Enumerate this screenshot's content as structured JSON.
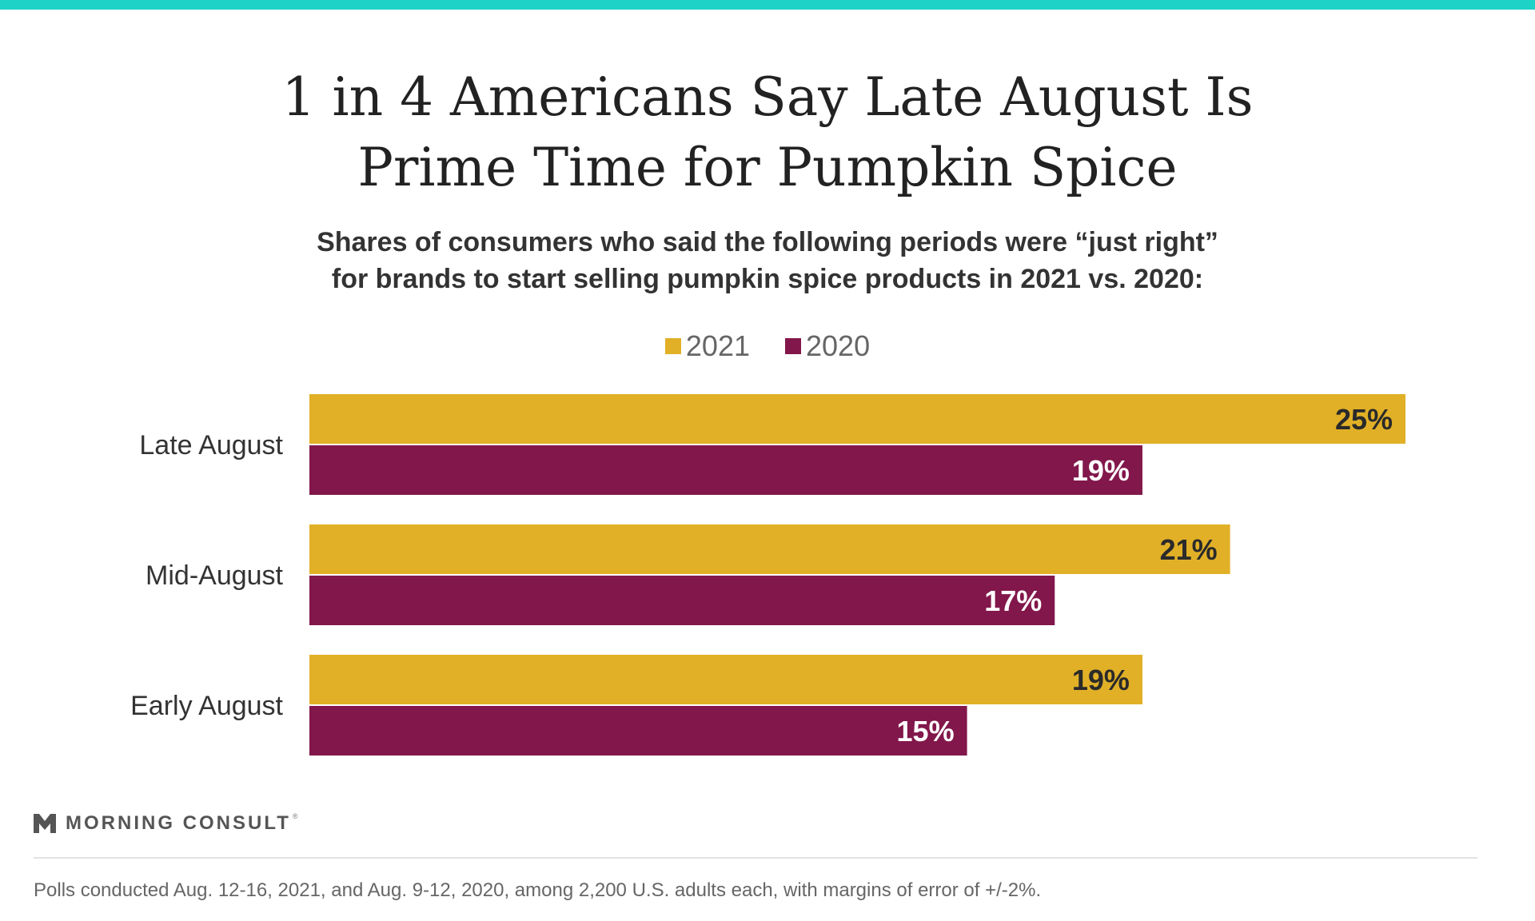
{
  "colors": {
    "top_bar": "#1ed2c8",
    "series_2021": "#e1b027",
    "series_2020": "#82174b",
    "label_on_2021": "#2a2a2a",
    "label_on_2020": "#ffffff",
    "logo": "#555555"
  },
  "logo": {
    "text": "MORNING CONSULT",
    "reg_mark": "®"
  },
  "footnote": "Polls conducted Aug. 12-16, 2021, and Aug. 9-12, 2020, among 2,200 U.S. adults each, with margins of error of +/-2%.",
  "chart_data": {
    "type": "bar",
    "orientation": "horizontal",
    "title_lines": [
      "1 in 4 Americans Say Late August Is",
      "Prime Time for Pumpkin Spice"
    ],
    "subtitle_lines": [
      "Shares of consumers who said the following periods were “just right”",
      "for brands to start selling pumpkin spice products in 2021 vs. 2020:"
    ],
    "categories": [
      "Late August",
      "Mid-August",
      "Early August"
    ],
    "series": [
      {
        "name": "2021",
        "values": [
          25,
          21,
          19
        ],
        "labels": [
          "25%",
          "21%",
          "19%"
        ]
      },
      {
        "name": "2020",
        "values": [
          19,
          17,
          15
        ],
        "labels": [
          "19%",
          "17%",
          "15%"
        ]
      }
    ],
    "xlim": [
      0,
      25
    ],
    "xlabel": "",
    "ylabel": "",
    "grid": false,
    "legend_position": "top-center"
  }
}
